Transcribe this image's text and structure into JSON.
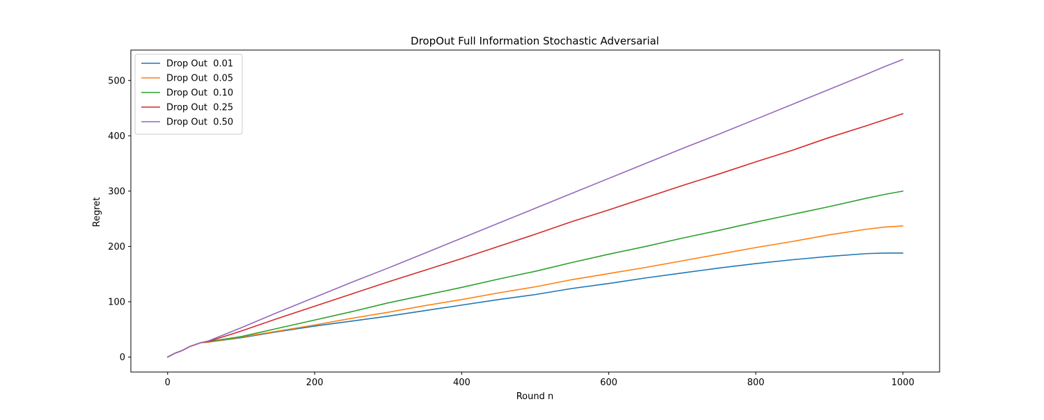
{
  "chart_data": {
    "type": "line",
    "title": "DropOut Full Information Stochastic Adversarial",
    "xlabel": "Round n",
    "ylabel": "Regret",
    "xlim": [
      -50,
      1050
    ],
    "ylim": [
      -27,
      555
    ],
    "xticks": [
      0,
      200,
      400,
      600,
      800,
      1000
    ],
    "yticks": [
      0,
      100,
      200,
      300,
      400,
      500
    ],
    "grid": false,
    "legend_position": "upper-left",
    "series": [
      {
        "name": "Drop Out  0.01",
        "color": "#1f77b4",
        "x": [
          0,
          10,
          20,
          30,
          45,
          55,
          100,
          150,
          200,
          250,
          300,
          350,
          400,
          450,
          500,
          550,
          600,
          650,
          700,
          750,
          800,
          850,
          900,
          950,
          975,
          1000
        ],
        "y": [
          0,
          7,
          12,
          19,
          26,
          27,
          35,
          46,
          56,
          65,
          74,
          84,
          94,
          104,
          113,
          124,
          133,
          143,
          152,
          161,
          169,
          176,
          182,
          187,
          188,
          188
        ]
      },
      {
        "name": "Drop Out  0.05",
        "color": "#ff7f0e",
        "x": [
          0,
          10,
          20,
          30,
          45,
          55,
          100,
          150,
          200,
          250,
          300,
          350,
          400,
          450,
          500,
          550,
          600,
          650,
          700,
          750,
          800,
          850,
          900,
          950,
          975,
          1000
        ],
        "y": [
          0,
          7,
          12,
          19,
          26,
          27,
          36,
          47,
          58,
          70,
          81,
          93,
          104,
          116,
          127,
          140,
          151,
          162,
          174,
          186,
          198,
          209,
          221,
          231,
          235,
          237
        ]
      },
      {
        "name": "Drop Out  0.10",
        "color": "#2ca02c",
        "x": [
          0,
          10,
          20,
          30,
          45,
          55,
          100,
          150,
          200,
          250,
          300,
          350,
          400,
          450,
          500,
          550,
          600,
          650,
          700,
          750,
          800,
          850,
          900,
          950,
          975,
          1000
        ],
        "y": [
          0,
          7,
          12,
          19,
          26,
          28,
          37,
          52,
          67,
          82,
          98,
          112,
          126,
          141,
          155,
          171,
          186,
          200,
          215,
          229,
          244,
          258,
          272,
          287,
          294,
          300
        ]
      },
      {
        "name": "Drop Out  0.25",
        "color": "#d62728",
        "x": [
          0,
          10,
          20,
          30,
          45,
          55,
          100,
          150,
          200,
          250,
          300,
          350,
          400,
          450,
          500,
          550,
          600,
          650,
          700,
          750,
          800,
          850,
          900,
          950,
          975,
          1000
        ],
        "y": [
          0,
          7,
          12,
          19,
          26,
          28,
          47,
          70,
          92,
          114,
          136,
          157,
          178,
          200,
          222,
          245,
          266,
          288,
          310,
          331,
          353,
          374,
          397,
          418,
          429,
          440
        ]
      },
      {
        "name": "Drop Out  0.50",
        "color": "#9467bd",
        "x": [
          0,
          10,
          20,
          30,
          45,
          55,
          100,
          150,
          200,
          250,
          300,
          350,
          400,
          450,
          500,
          550,
          600,
          650,
          700,
          750,
          800,
          850,
          900,
          950,
          975,
          1000
        ],
        "y": [
          0,
          7,
          12,
          19,
          26,
          29,
          53,
          81,
          108,
          135,
          161,
          188,
          215,
          242,
          269,
          296,
          323,
          350,
          377,
          403,
          430,
          457,
          484,
          511,
          525,
          538
        ]
      }
    ]
  }
}
